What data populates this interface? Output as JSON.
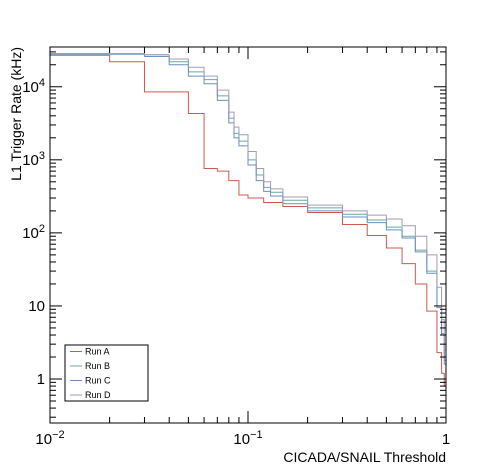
{
  "chart_data": {
    "type": "line",
    "step": true,
    "title": "",
    "xlabel": "CICADA/SNAIL Threshold",
    "ylabel": "L1 Trigger Rate (kHz)",
    "xscale": "log",
    "yscale": "log",
    "xlim": [
      0.01,
      1
    ],
    "ylim": [
      0.25,
      35000
    ],
    "grid": false,
    "legend_position": "bottom-left",
    "x_tick_labels": [
      {
        "value": 0.01,
        "base": "10",
        "exp": "−2"
      },
      {
        "value": 0.1,
        "base": "10",
        "exp": "−1"
      },
      {
        "value": 1,
        "base": "1",
        "exp": ""
      }
    ],
    "y_tick_labels": [
      {
        "value": 1,
        "base": "1",
        "exp": ""
      },
      {
        "value": 10,
        "base": "10",
        "exp": ""
      },
      {
        "value": 100,
        "base": "10",
        "exp": "2"
      },
      {
        "value": 1000,
        "base": "10",
        "exp": "3"
      },
      {
        "value": 10000,
        "base": "10",
        "exp": "4"
      }
    ],
    "series": [
      {
        "name": "Run A",
        "color": "#cc5a50",
        "x": [
          0.01,
          0.02,
          0.03,
          0.05,
          0.06,
          0.07,
          0.08,
          0.09,
          0.1,
          0.12,
          0.15,
          0.2,
          0.3,
          0.4,
          0.5,
          0.6,
          0.7,
          0.8,
          0.9,
          0.95,
          0.98,
          1.0
        ],
        "y": [
          27000,
          22000,
          8500,
          4300,
          760,
          700,
          520,
          330,
          300,
          260,
          230,
          190,
          130,
          92,
          62,
          38,
          20,
          8.5,
          2.3,
          1.2,
          0.8,
          0.5
        ]
      },
      {
        "name": "Run B",
        "color": "#6aa8a2",
        "x": [
          0.01,
          0.03,
          0.04,
          0.05,
          0.06,
          0.07,
          0.08,
          0.085,
          0.09,
          0.1,
          0.11,
          0.12,
          0.13,
          0.15,
          0.2,
          0.3,
          0.4,
          0.5,
          0.6,
          0.7,
          0.8,
          0.9,
          0.95,
          0.98,
          1.0
        ],
        "y": [
          28000,
          26000,
          22000,
          16000,
          12500,
          7500,
          3700,
          2300,
          1800,
          1000,
          620,
          420,
          360,
          280,
          220,
          180,
          150,
          120,
          90,
          58,
          30,
          10,
          4.2,
          1.8,
          0.7
        ]
      },
      {
        "name": "Run C",
        "color": "#6b8fc2",
        "x": [
          0.01,
          0.03,
          0.04,
          0.05,
          0.06,
          0.07,
          0.08,
          0.085,
          0.09,
          0.1,
          0.11,
          0.12,
          0.13,
          0.15,
          0.2,
          0.3,
          0.4,
          0.5,
          0.6,
          0.7,
          0.8,
          0.9,
          0.95,
          0.98,
          1.0
        ],
        "y": [
          28000,
          26000,
          20000,
          14000,
          11000,
          6500,
          3200,
          2000,
          1550,
          850,
          520,
          370,
          320,
          250,
          200,
          165,
          138,
          110,
          85,
          55,
          28,
          9.5,
          4,
          1.6,
          0.6
        ]
      },
      {
        "name": "Run D",
        "color": "#a59ab5",
        "x": [
          0.01,
          0.03,
          0.04,
          0.05,
          0.06,
          0.07,
          0.08,
          0.085,
          0.09,
          0.1,
          0.11,
          0.12,
          0.13,
          0.15,
          0.2,
          0.3,
          0.4,
          0.5,
          0.6,
          0.7,
          0.8,
          0.9,
          0.95,
          0.98,
          1.0
        ],
        "y": [
          28500,
          27500,
          24000,
          18500,
          14000,
          9000,
          4500,
          2800,
          2200,
          1300,
          760,
          500,
          400,
          310,
          240,
          200,
          175,
          155,
          125,
          90,
          50,
          18,
          6.5,
          2.5,
          0.8
        ]
      }
    ]
  }
}
